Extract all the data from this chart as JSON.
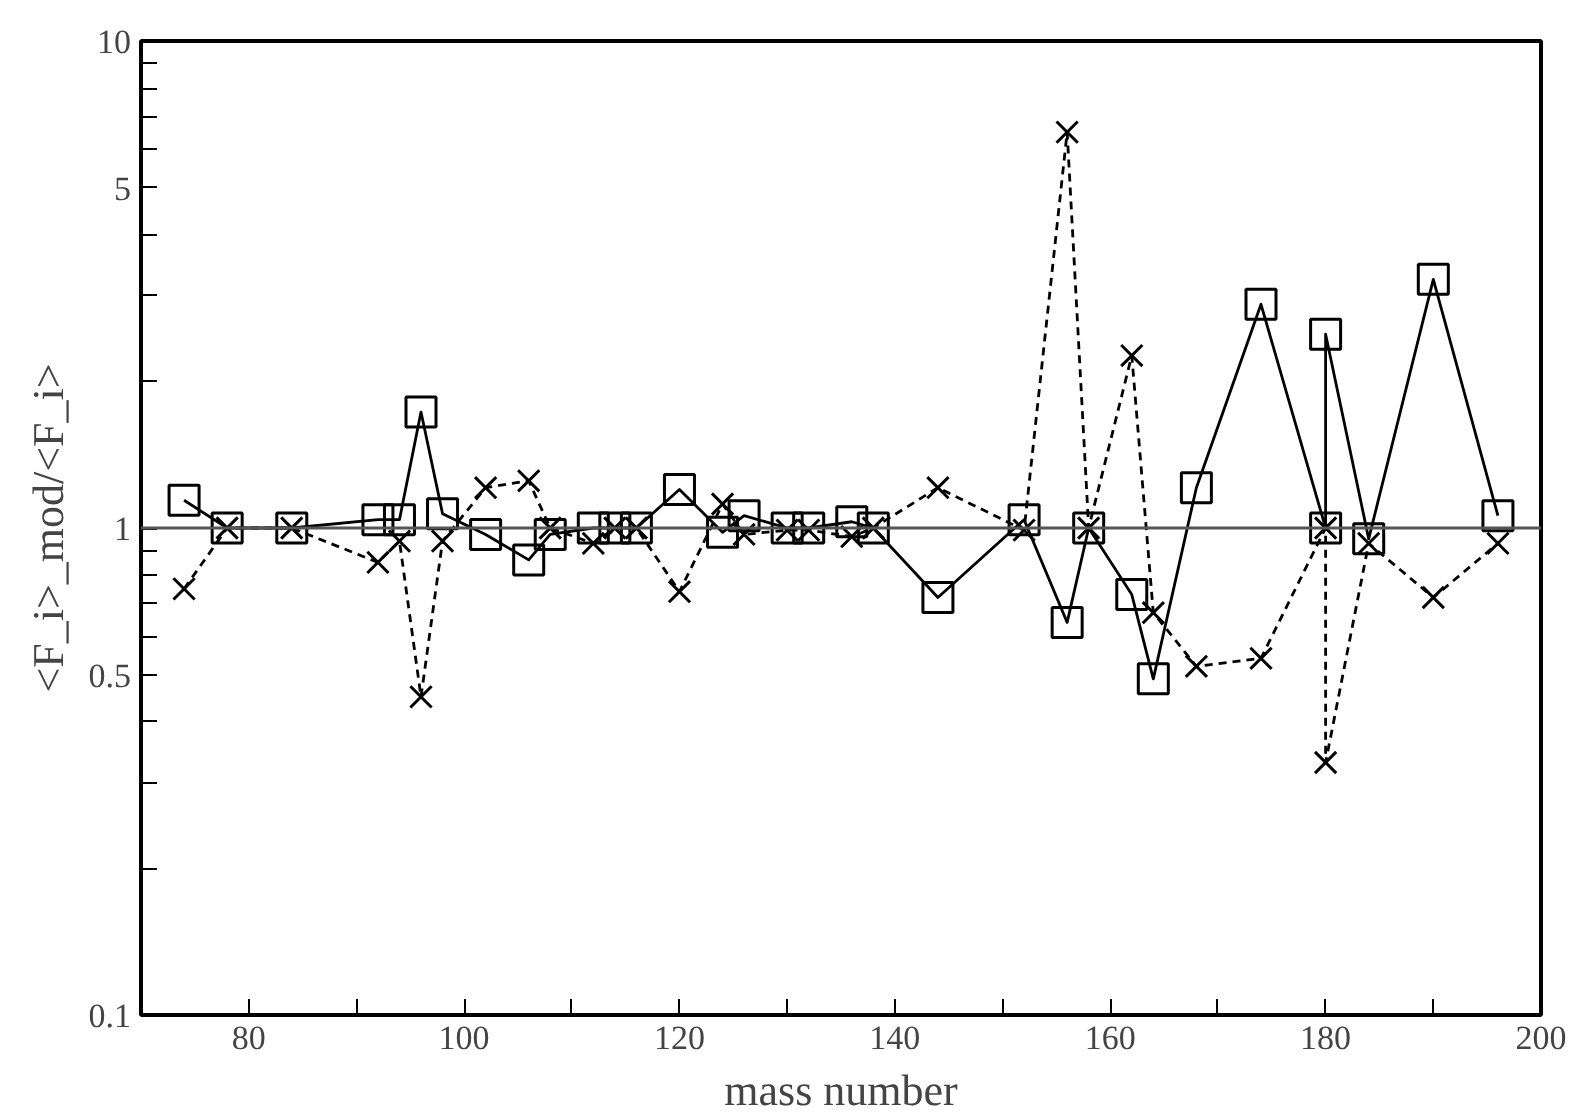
{
  "chart_data": {
    "type": "line",
    "xlabel": "mass number",
    "ylabel": "<F_i>_mod/<F_i>",
    "log": "y",
    "grid": false,
    "xlim": [
      70,
      200
    ],
    "xticks": [
      80,
      {
        "value": 90,
        "label": null
      },
      100,
      {
        "value": 110,
        "label": null
      },
      120,
      {
        "value": 130,
        "label": null
      },
      140,
      {
        "value": 150,
        "label": null
      },
      160,
      {
        "value": 170,
        "label": null
      },
      180,
      {
        "value": 190,
        "label": null
      },
      200
    ],
    "ylim": [
      0.1,
      10
    ],
    "yticks": [
      0.1,
      {
        "value": 0.2,
        "label": null
      },
      {
        "value": 0.3,
        "label": null
      },
      {
        "value": 0.4,
        "label": null
      },
      0.5,
      {
        "value": 0.6,
        "label": null
      },
      {
        "value": 0.7,
        "label": null
      },
      {
        "value": 0.8,
        "label": null
      },
      {
        "value": 0.9,
        "label": null
      },
      1,
      {
        "value": 2,
        "label": null
      },
      {
        "value": 3,
        "label": null
      },
      {
        "value": 4,
        "label": null
      },
      5,
      {
        "value": 6,
        "label": null
      },
      {
        "value": 7,
        "label": null
      },
      {
        "value": 8,
        "label": null
      },
      {
        "value": 9,
        "label": null
      },
      10
    ],
    "ref_lines": [
      {
        "axis": "y",
        "value": 1,
        "color": "#555555"
      }
    ],
    "series": [
      {
        "color": "#000000",
        "marker": "square",
        "line_style": "solid",
        "x": [
          74,
          78,
          84,
          92,
          94,
          96,
          98,
          102,
          106,
          108,
          112,
          114,
          116,
          120,
          124,
          126,
          130,
          132,
          136,
          138,
          144,
          152,
          156,
          158,
          162,
          164,
          168,
          174,
          180,
          180,
          184,
          190,
          196
        ],
        "values": [
          1.14,
          1.0,
          1.0,
          1.04,
          1.04,
          1.73,
          1.07,
          0.97,
          0.86,
          0.97,
          1.0,
          1.0,
          1.0,
          1.2,
          0.98,
          1.06,
          1.0,
          1.0,
          1.03,
          1.0,
          0.72,
          1.04,
          0.64,
          1.0,
          0.73,
          0.49,
          1.21,
          2.88,
          1.0,
          2.5,
          0.95,
          3.24,
          1.06
        ]
      },
      {
        "color": "#000000",
        "marker": "cross",
        "line_style": "dashed",
        "x": [
          74,
          78,
          84,
          92,
          94,
          96,
          98,
          102,
          106,
          108,
          112,
          114,
          116,
          120,
          124,
          126,
          130,
          132,
          136,
          138,
          144,
          152,
          156,
          158,
          162,
          164,
          168,
          174,
          180,
          180,
          184,
          190,
          196
        ],
        "values": [
          0.75,
          1.0,
          1.0,
          0.85,
          0.94,
          0.45,
          0.94,
          1.21,
          1.25,
          1.0,
          0.93,
          1.0,
          1.0,
          0.74,
          1.12,
          0.97,
          0.99,
          0.99,
          0.96,
          1.0,
          1.21,
          0.99,
          6.5,
          1.0,
          2.26,
          0.67,
          0.52,
          0.54,
          1.0,
          0.33,
          0.93,
          0.72,
          0.93
        ]
      }
    ]
  }
}
